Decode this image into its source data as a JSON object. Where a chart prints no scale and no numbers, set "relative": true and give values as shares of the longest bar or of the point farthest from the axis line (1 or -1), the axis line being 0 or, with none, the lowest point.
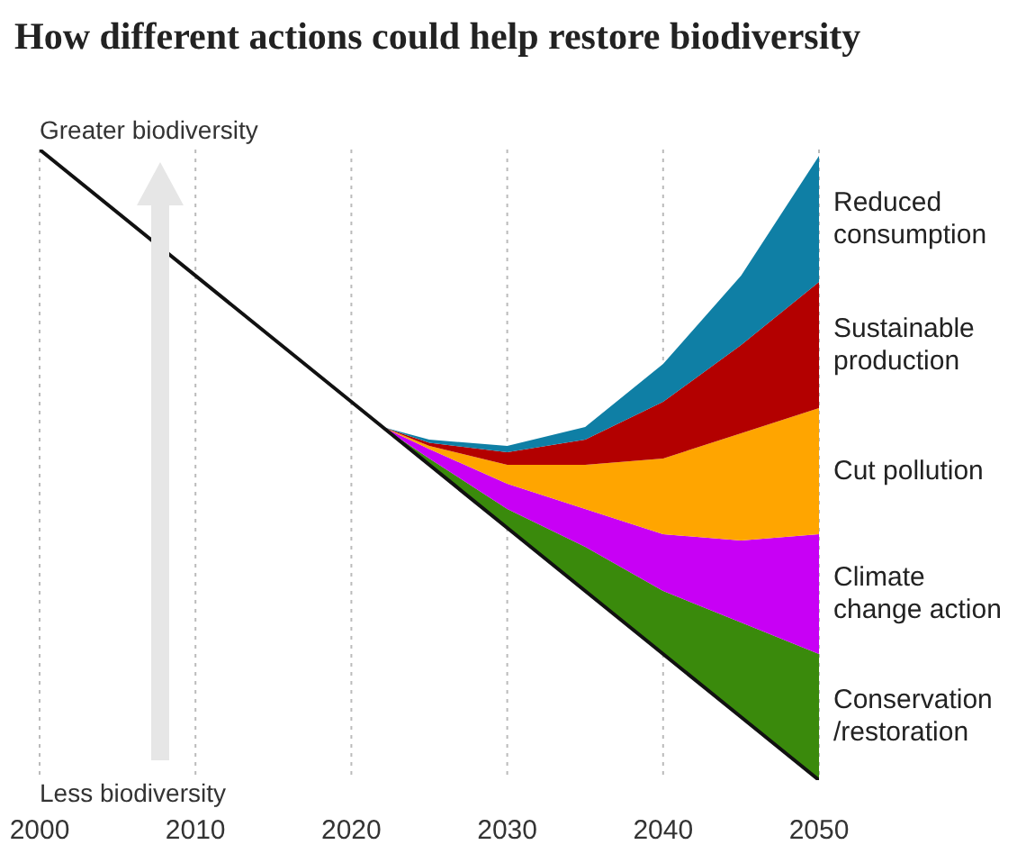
{
  "chart_data": {
    "type": "area",
    "title": "How different actions could help restore biodiversity",
    "relative": true,
    "grid": "x",
    "legend": false,
    "x": [
      2000,
      2022,
      2025,
      2030,
      2035,
      2040,
      2045,
      2050
    ],
    "xlim": [
      2000,
      2050
    ],
    "xticks": [
      2000,
      2010,
      2020,
      2030,
      2040,
      2050
    ],
    "annotations": [
      "Greater biodiversity",
      "Less biodiversity"
    ],
    "series": [
      {
        "type": "line",
        "color": "#111111",
        "values": [
          1.0,
          0.56,
          0.5,
          0.4,
          0.3,
          0.2,
          0.1,
          0
        ]
      },
      {
        "name": "Conservation /restoration",
        "color": "#3a8a0c",
        "values": [
          null,
          0.56,
          0.51,
          0.43,
          0.37,
          0.3,
          0.25,
          0.2
        ]
      },
      {
        "name": "Climate change action",
        "color": "#c800f5",
        "values": [
          null,
          0.56,
          0.525,
          0.47,
          0.43,
          0.39,
          0.38,
          0.39
        ]
      },
      {
        "name": "Cut pollution",
        "color": "#ffa500",
        "values": [
          null,
          0.56,
          0.53,
          0.5,
          0.5,
          0.51,
          0.55,
          0.59
        ]
      },
      {
        "name": "Sustainable production",
        "color": "#b30000",
        "values": [
          null,
          0.56,
          0.535,
          0.52,
          0.54,
          0.6,
          0.69,
          0.79
        ]
      },
      {
        "name": "Reduced consumption",
        "color": "#0f7fa5",
        "values": [
          null,
          0.56,
          0.54,
          0.53,
          0.56,
          0.66,
          0.8,
          0.99
        ]
      }
    ]
  }
}
